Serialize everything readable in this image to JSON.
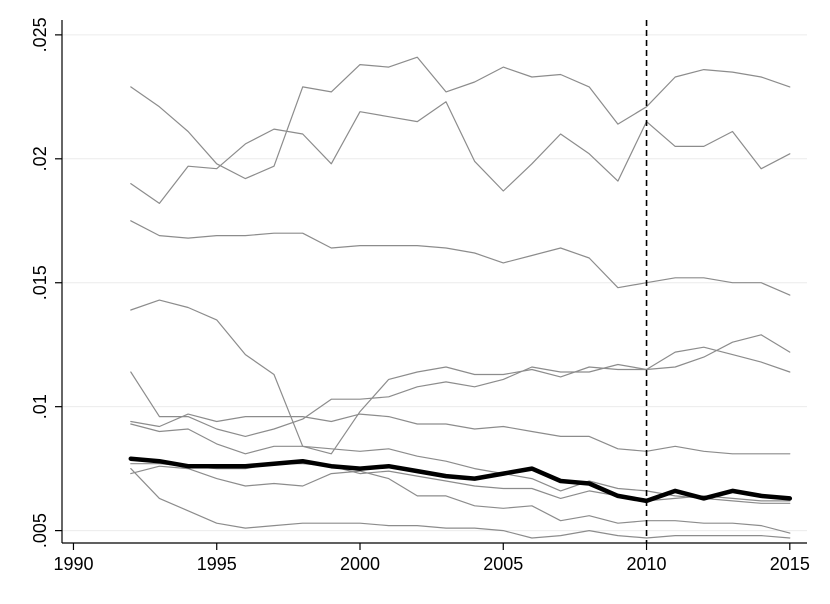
{
  "chart_data": {
    "type": "line",
    "title": "",
    "xlabel": "",
    "ylabel": "",
    "xlim": [
      1989.6,
      2015.6
    ],
    "ylim": [
      0.0045,
      0.0256
    ],
    "x_ticks": [
      1990,
      1995,
      2000,
      2005,
      2010,
      2015
    ],
    "x_tick_labels": [
      "1990",
      "1995",
      "2000",
      "2005",
      "2010",
      "2015"
    ],
    "y_ticks": [
      0.005,
      0.01,
      0.015,
      0.02,
      0.025
    ],
    "y_tick_labels": [
      ".005",
      ".01",
      ".015",
      ".02",
      ".025"
    ],
    "grid": "horizontal",
    "reference_line": {
      "axis": "x",
      "value": 2010,
      "style": "dashed",
      "color": "#000000"
    },
    "x": [
      1992,
      1993,
      1994,
      1995,
      1996,
      1997,
      1998,
      1999,
      2000,
      2001,
      2002,
      2003,
      2004,
      2005,
      2006,
      2007,
      2008,
      2009,
      2010,
      2011,
      2012,
      2013,
      2014,
      2015
    ],
    "series": [
      {
        "color": "#8c8c8c",
        "width": 1.2,
        "values": [
          0.0229,
          0.0221,
          0.0211,
          0.0198,
          0.0192,
          0.0197,
          0.0229,
          0.0227,
          0.0238,
          0.0237,
          0.0241,
          0.0227,
          0.0231,
          0.0237,
          0.0233,
          0.0234,
          0.0229,
          0.0214,
          0.0221,
          0.0233,
          0.0236,
          0.0235,
          0.0233,
          0.0229
        ]
      },
      {
        "color": "#8c8c8c",
        "width": 1.2,
        "values": [
          0.019,
          0.0182,
          0.0197,
          0.0196,
          0.0206,
          0.0212,
          0.021,
          0.0198,
          0.0219,
          0.0217,
          0.0215,
          0.0223,
          0.0199,
          0.0187,
          0.0198,
          0.021,
          0.0202,
          0.0191,
          0.0215,
          0.0205,
          0.0205,
          0.0211,
          0.0196,
          0.0202
        ]
      },
      {
        "color": "#8c8c8c",
        "width": 1.2,
        "values": [
          0.0175,
          0.0169,
          0.0168,
          0.0169,
          0.0169,
          0.017,
          0.017,
          0.0164,
          0.0165,
          0.0165,
          0.0165,
          0.0164,
          0.0162,
          0.0158,
          0.0161,
          0.0164,
          0.016,
          0.0148,
          0.015,
          0.0152,
          0.0152,
          0.015,
          0.015,
          0.0145
        ]
      },
      {
        "color": "#8c8c8c",
        "width": 1.2,
        "values": [
          0.0139,
          0.0143,
          0.014,
          0.0135,
          0.0121,
          0.0113,
          0.0084,
          0.0081,
          0.0098,
          0.0111,
          0.0114,
          0.0116,
          0.0113,
          0.0113,
          0.0115,
          0.0112,
          0.0116,
          0.0115,
          0.0115,
          0.0122,
          0.0124,
          0.0121,
          0.0118,
          0.0114
        ]
      },
      {
        "color": "#8c8c8c",
        "width": 1.2,
        "values": [
          0.0114,
          0.0096,
          0.0096,
          0.0091,
          0.0088,
          0.0091,
          0.0095,
          0.0103,
          0.0103,
          0.0104,
          0.0108,
          0.011,
          0.0108,
          0.0111,
          0.0116,
          0.0114,
          0.0114,
          0.0117,
          0.0115,
          0.0116,
          0.012,
          0.0126,
          0.0129,
          0.0122
        ]
      },
      {
        "color": "#8c8c8c",
        "width": 1.2,
        "values": [
          0.0094,
          0.0092,
          0.0097,
          0.0094,
          0.0096,
          0.0096,
          0.0096,
          0.0094,
          0.0097,
          0.0096,
          0.0093,
          0.0093,
          0.0091,
          0.0092,
          0.009,
          0.0088,
          0.0088,
          0.0083,
          0.0082,
          0.0084,
          0.0082,
          0.0081,
          0.0081,
          0.0081
        ]
      },
      {
        "color": "#8c8c8c",
        "width": 1.2,
        "values": [
          0.0093,
          0.009,
          0.0091,
          0.0085,
          0.0081,
          0.0084,
          0.0084,
          0.0083,
          0.0082,
          0.0083,
          0.008,
          0.0078,
          0.0075,
          0.0073,
          0.0071,
          0.0066,
          0.007,
          0.0067,
          0.0066,
          0.0064,
          0.0063,
          0.0062,
          0.0061,
          0.0061
        ]
      },
      {
        "color": "#8c8c8c",
        "width": 1.2,
        "values": [
          0.0077,
          0.0077,
          0.0076,
          0.0075,
          0.0075,
          0.0077,
          0.0077,
          0.0076,
          0.0073,
          0.0074,
          0.0072,
          0.007,
          0.0068,
          0.0067,
          0.0067,
          0.0063,
          0.0066,
          0.0064,
          0.0062,
          0.0063,
          0.0064,
          0.0063,
          0.0062,
          0.0062
        ]
      },
      {
        "color": "#8c8c8c",
        "width": 1.2,
        "values": [
          0.0073,
          0.0076,
          0.0075,
          0.0071,
          0.0068,
          0.0069,
          0.0068,
          0.0073,
          0.0074,
          0.0071,
          0.0064,
          0.0064,
          0.006,
          0.0059,
          0.006,
          0.0054,
          0.0056,
          0.0053,
          0.0054,
          0.0054,
          0.0053,
          0.0053,
          0.0052,
          0.0049
        ]
      },
      {
        "color": "#8c8c8c",
        "width": 1.2,
        "values": [
          0.0075,
          0.0063,
          0.0058,
          0.0053,
          0.0051,
          0.0052,
          0.0053,
          0.0053,
          0.0053,
          0.0052,
          0.0052,
          0.0051,
          0.0051,
          0.005,
          0.0047,
          0.0048,
          0.005,
          0.0048,
          0.0047,
          0.0048,
          0.0048,
          0.0048,
          0.0048,
          0.0047
        ]
      },
      {
        "color": "#000000",
        "width": 4.5,
        "values": [
          0.0079,
          0.0078,
          0.0076,
          0.0076,
          0.0076,
          0.0077,
          0.0078,
          0.0076,
          0.0075,
          0.0076,
          0.0074,
          0.0072,
          0.0071,
          0.0073,
          0.0075,
          0.007,
          0.0069,
          0.0064,
          0.0062,
          0.0066,
          0.0063,
          0.0066,
          0.0064,
          0.0063
        ]
      }
    ]
  }
}
